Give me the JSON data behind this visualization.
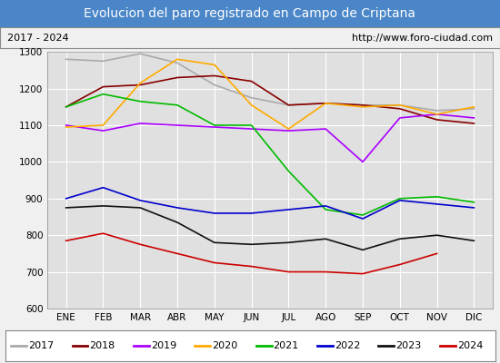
{
  "title": "Evolucion del paro registrado en Campo de Criptana",
  "subtitle_left": "2017 - 2024",
  "subtitle_right": "http://www.foro-ciudad.com",
  "ylim": [
    600,
    1300
  ],
  "months": [
    "ENE",
    "FEB",
    "MAR",
    "ABR",
    "MAY",
    "JUN",
    "JUL",
    "AGO",
    "SEP",
    "OCT",
    "NOV",
    "DIC"
  ],
  "series": {
    "2017": {
      "color": "#aaaaaa",
      "data": [
        1280,
        1275,
        1295,
        1270,
        1210,
        1175,
        1155,
        1160,
        1155,
        1155,
        1140,
        1145
      ]
    },
    "2018": {
      "color": "#880000",
      "data": [
        1150,
        1205,
        1210,
        1230,
        1235,
        1220,
        1155,
        1160,
        1155,
        1145,
        1115,
        1105
      ]
    },
    "2019": {
      "color": "#aa00ff",
      "data": [
        1100,
        1085,
        1105,
        1100,
        1095,
        1090,
        1085,
        1090,
        1000,
        1120,
        1130,
        1120
      ]
    },
    "2020": {
      "color": "#ffaa00",
      "data": [
        1095,
        1100,
        1215,
        1280,
        1265,
        1155,
        1090,
        1160,
        1150,
        1155,
        1130,
        1150
      ]
    },
    "2021": {
      "color": "#00bb00",
      "data": [
        1150,
        1185,
        1165,
        1155,
        1100,
        1100,
        975,
        870,
        855,
        900,
        905,
        890
      ]
    },
    "2022": {
      "color": "#0000cc",
      "data": [
        900,
        930,
        895,
        875,
        860,
        860,
        870,
        880,
        845,
        895,
        885,
        875
      ]
    },
    "2023": {
      "color": "#111111",
      "data": [
        875,
        880,
        875,
        835,
        780,
        775,
        780,
        790,
        760,
        790,
        800,
        785
      ]
    },
    "2024": {
      "color": "#cc0000",
      "data": [
        785,
        805,
        775,
        750,
        725,
        715,
        700,
        700,
        695,
        720,
        750,
        null
      ]
    }
  },
  "background_color": "#f0f0f0",
  "plot_bg_color": "#e0e0e0",
  "title_bg_color": "#4a86c8",
  "title_text_color": "#ffffff",
  "grid_color": "#ffffff",
  "title_fontsize": 10,
  "subtitle_fontsize": 8,
  "tick_fontsize": 7.5,
  "legend_fontsize": 8
}
